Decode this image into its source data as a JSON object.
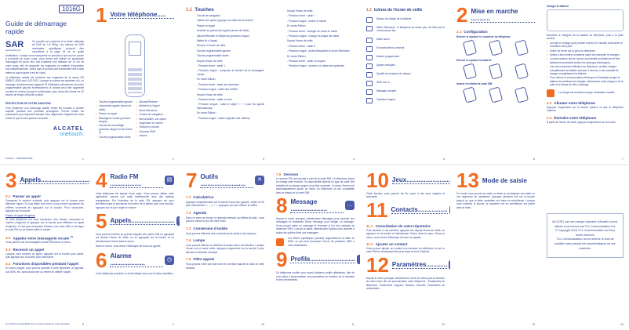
{
  "colors": {
    "accent": "#f26b21",
    "text": "#2b3f8f"
  },
  "cover": {
    "model": "1016G",
    "title": "Guide de démarrage rapide",
    "sar_logo": "SAR",
    "sar_url": "www.sar-tick.com",
    "sar_text": "Ce produit est conforme à la limite nationale de DAS de 1,6 W/kg. Les valeurs de DAS maximales spécifiques peuvent être consultées à la page 18 de ce guide d'utilisation. Lorsque vous transportez ce produit ou que vous le portez à proximité de votre corps, vous devez soit utiliser un accessoire homologué tel qu'un étui, soit maintenir une distance de 10 cm de votre corps, afin de respecter les exigences en matière d'exposition aux radiofréquences. Notez que ce produit peut transmettre des ondes même si aucun appel n'est en cours.",
    "norm_text": "Le téléphone mobile est conforme aux exigences de la norme EN 60950-1:2006 mod. A12:2011. Lorsque le volume est supérieur à 6, un message d'avertissement apparaît. Si l'utilisateur sélectionne la touche programmable gauche Avertissement, le volume peut être augmenté au-delà du niveau 6 jusqu'à confirmation, plus d'une fois toutes les 20 heures de temps d'écoute cumulé.",
    "hearing_title": "PROTECTION DE VOTRE AUDITION",
    "hearing_text": "Pour empêcher tout dommage auditif, évitez les écoutes à volume amplifié pendant des périodes prolongées. Prenez toutes les précautions qui s'imposent lorsque vous rapprochez l'appareil de votre oreille et que le haut-parleur est activé.",
    "brand": "ALCATEL",
    "brand2": "onetouch.",
    "footer": "Français - CJB1CE0ALABA",
    "page": "1"
  },
  "p2": {
    "num": "1",
    "title": "Votre téléphone.....",
    "left": [
      "Touche programmable gauche",
      "Journal des appels (écran de veille)",
      "Passer un appel",
      "Messagerie vocale (pression longue)",
      "Touche de verrouillage (pression longue sur la touche #)",
      "Touche programmable droite"
    ],
    "right": [
      "Allumer/Éteindre",
      "Mettre fin à l'appel",
      "Mode silencieux",
      "Touche de navigation :",
      "Menu/Valider une option",
      "Augmenter le volume",
      "Réduire le volume",
      "Nouveau SMS",
      "Alarme"
    ],
    "page": "2"
  },
  "p3": {
    "sec": "1.1",
    "title": "Touches",
    "items": [
      "Touche de navigation",
      "Valider une option (appuyer au milieu de la touche)",
      "Passer un appel",
      "Accéder au journal des appels (écran de veille)",
      "Allumer/éteindre le téléphone (pression longue)",
      "Mettre fin à l'appel",
      "Revenir à l'écran de veille",
      "Touche programmable gauche",
      "Touche programmable droite",
      "Depuis l'écran de veille",
      "- Pression brève : saisir 1",
      "- Pression longue : composer le numéro de la messagerie vocale",
      "En mode Édition :",
      "- Pression brève : saisir des symboles",
      "- Pression longue : saisir des chiffres",
      "Depuis l'écran de veille",
      "- Pression brève : saisir un zéro",
      "- Pression longue : saisir le signe « + » pour les appels internationaux",
      "En mode Édition :",
      "- Pression longue : saisir 0 (ajouter des chiffres)"
    ],
    "page": "3"
  },
  "p4": {
    "items": [
      "Depuis l'écran de veille",
      "- Pression brève : saisir *",
      "- Pression longue : activer le clavier",
      "En mode Édition :",
      "- Pression brève : changer de mode de saisie",
      "- Pression longue : changer la langue de saisie",
      "Depuis l'écran de veille",
      "- Pression brève : saisir #",
      "- Pression longue : activer/désactiver le mode Silencieux",
      "En mode Édition :",
      "- Pression brève : saisir un espace",
      "- Pression longue : accéder à la table des symboles"
    ],
    "page": "4"
  },
  "p5": {
    "sec": "1.2",
    "title": "Icônes de l'écran de veille",
    "icons": [
      "Niveau de charge de la batterie.",
      "Mode Silencieux : le téléphone ne sonne pas, ne vibre pas et n'émet aucun bip.",
      "Mode avion.",
      "Kit mains libres connecté.",
      "Alarme programmée.",
      "Appels manqués.",
      "Qualité de réception du réseau.",
      "SMS non lu.",
      "Message complet.",
      "Transfert d'appel."
    ],
    "page": "5"
  },
  "p6": {
    "num": "2",
    "title": "Mise en marche ...........",
    "sec": "2.1",
    "sec_title": "Configuration",
    "sub1": "Enlever et replacer le couvercle du téléphone",
    "sub2": "Enlever et replacer la batterie",
    "sub3": "Insérer et extraire la carte SIM",
    "page": "6"
  },
  "p7": {
    "sub": "Charger la batterie",
    "intro": "Branchez le chargeur de la batterie au téléphone, puis à la prise secteur.",
    "bullets": [
      "La mise en charge peut prendre environ 20 minutes à démarrer si la batterie est à plat.",
      "Évitez de forcer sur la prise du téléphone.",
      "Veillez à bien insérer la batterie avant de connecter le chargeur.",
      "La prise secteur doit se trouver à proximité du téléphone et être facilement accessible (évitez les rallonges électriques).",
      "Lors de la première utilisation du téléphone, veuillez charger complètement la batterie (environ 3 heures). Il est conseillé de charger complètement la batterie.",
      "Pour réduire la consommation électrique et d'énergie lorsque la batterie est entièrement chargée, débranchez votre chargeur de la prise et le temps de rétro-éclairage."
    ],
    "note": "La charge est terminée lorsque l'animation s'arrête.",
    "s22": "2.2",
    "s22_title": "Allumer votre téléphone",
    "s22_text": "Appuyez longuement sur la touche jusqu'à ce que le téléphone s'allume.",
    "s23": "2.3",
    "s23_title": "Éteindre votre téléphone",
    "s23_text": "À partir de l'écran de veille, appuyez longuement sur la touche.",
    "page": "7"
  },
  "p8": {
    "num": "3",
    "title": "Appels.............................",
    "s1": "3.1",
    "s1t": "Passer un appel",
    "s1p": "Composez le numéro souhaité, puis appuyez sur la touche pour effectuer l'appel. Si vous faites une erreur, vous pouvez supprimer les chiffres incorrects en appuyant sur la touche. Pour raccrocher, appuyez sur la touche.",
    "u": "Passer un appel d'urgence",
    "up": "Si votre téléphone est sous couverture d'un réseau, composez le numéro d'urgence et appuyez sur la touche pour effectuer un appel d'urgence. Il n'est pas nécessaire d'insérer une carte SIM, ni de taper le code PIN ou de déverrouiller le clavier.",
    "s2": "3.2",
    "s2t": "Appeler votre messagerie vocale",
    "sup": "(1)",
    "s2p": "Vous pouvez voir la messagerie vocale SIM dans ce menu.",
    "s3": "3.3",
    "s3t": "Recevoir un appel",
    "s3p": "Lorsque vous recevez un appel, appuyez sur la touche pour parler, puis appuyez sur la touche pour raccrocher.",
    "s4": "3.4",
    "s4t": "Fonctions disponibles pendant l'appel",
    "s4p": "En cours d'appel, vous pouvez accéder à votre répertoire, à l'agenda, aux SMS, etc. sans raccrocher ou mettre en attente l'appel.",
    "fn": "(1) Vérifiez la disponibilité de ce service auprès de votre opérateur.",
    "page": "8"
  },
  "p9": {
    "n4": "4",
    "t4": "Radio FM ..................",
    "p4": "Votre téléphone est équipé d'une radio. Vous pouvez utiliser cette application comme une radio traditionnelle avec des stations enregistrées. Sur l'interface de la radio FM, appuyez sur pour lire/interrompre le processus de lecture de la station que vous écoutez, appuyez sur et pour régler le volume.",
    "n5": "5",
    "t5": "Appels.........................",
    "p5": "Vous pouvez accéder au journal d'appels des cartes SIM en appuyant sur depuis l'écran de veille, ou en appuyant sur la touche et en sélectionnant l'icône dans le menu.",
    "p5b": "Dans ce menu, vous verrez l'historique de tous vos appels.",
    "n6": "6",
    "t6": "Alarme ....................",
    "p6": "Votre téléphone possède un réveil intégré avec une fonction répétition.",
    "page": "9"
  },
  "p10": {
    "num": "7",
    "title": "Outils ..........................",
    "secs": [
      {
        "n": "7.1",
        "t": "Calculatrice",
        "p": "Appuyez respectivement sur la touche haut, bas, gauche, droite et OK pour sélectionner +, -, ×, ÷, =. Appuyez sur pour effacer le chiffre."
      },
      {
        "n": "7.2",
        "t": "Agenda",
        "p": "Dans ce menu se trouve un agenda mensuel qui affiche la date ; vous pouvez choisir le jour de votre choix."
      },
      {
        "n": "7.3",
        "t": "Conversion d'unités",
        "p": "Vous pouvez effectuer des conversions de poids et de mesures."
      },
      {
        "n": "7.4",
        "t": "Lampe",
        "p": "Vous pouvez allumer ou éteindre la lampe selon vos besoins. Lorsque l'écran est en mode veille, appuyez longuement sur la touche 3 pour allumer ou éteindre la lampe."
      },
      {
        "n": "7.5",
        "t": "Filtre appels",
        "p": "Vous pouvez créer une liste noire et une liste blanche à l'aide de cette fonction."
      }
    ],
    "page": "10"
  },
  "p11": {
    "s6": "7.6",
    "s6t": "Services",
    "s6p": "Le service STK est la boîte à outil de la carte SIM. Ce téléphone prend en charge cette fonction. Sa disponibilité dépend du type de carte SIM installée et du réseau auquel vous êtes connecté. Le menu Service est automatiquement ajouté au menu du téléphone s'il est compatible avec le réseau et la carte SIM.",
    "n8": "8",
    "t8": "Message .....................",
    "p8": "Depuis le menu principal, sélectionnez Messages pour accéder aux messages et choisissez Écrire message pour rédiger un message. Vous pouvez saisir un message et l'envoyer à l'un des contacts du répertoire SMS. Lors de la saisie, sélectionnez Options pour accéder à toutes les options liées aux messages.",
    "note": "Les lettres spécifiques (accent) augmenteront la taille du SMS, ce qui peut provoquer l'envoi de plusieurs SMS à votre destinataire.",
    "n9": "9",
    "t9": "Profils..........................",
    "p9": "Ce téléphone mobile vous fournit plusieurs profils utilisateurs, afin de vous aider à personnaliser ces paramètres en fonction de la situation et des événements.",
    "page": "11"
  },
  "p12": {
    "n10": "10",
    "t10": "Jeux..........................",
    "p10": "Cette fonction vous permet de lire jouer à des jeux simples et amusants.",
    "n11": "11",
    "t11": "Contacts.................",
    "s1": "11.1",
    "s1t": "Consultation de votre répertoire",
    "s1p": "Pour accéder à vos contacts, appuyez sur depuis l'écran de veille, ou appuyez sur la touche et sélectionnez l'icône dans le menu. Dans ce menu, vous verrez l'historique de tous vos appels.",
    "s2": "11.2",
    "s2t": "Ajouter un contact",
    "s2p": "Vous pouvez ajouter un contact à la mémoire du téléphone ou sur la carte SIM en choisissant Nouveau dans le menu Options.",
    "n12": "12",
    "t12": "Paramètres............",
    "p12": "Depuis le menu principal, sélectionnez l'icône de menu puis la fonction de votre choix afin de personnaliser votre téléphone : Paramètres du téléphone, Paramètres d'appels, Réseau, Sécurité, Paramètres de restauration.",
    "page": "12"
  },
  "p13": {
    "num": "13",
    "title": "Mode de saisie",
    "p": "Ce mode vous permet de saisir un texte en choisissant une lettre ou une séquence de caractères. Appuyez plusieurs fois sur la touche jusqu'à ce que la lettre souhaitée soit mise en surbrillance. Lorsque vous relâchez la touche, la caractère mis en surbrillance est inséré dans le texte.",
    "page": "13"
  },
  "p14": {
    "lines": [
      "ALCATEL est une marque déposée d'Alcatel-Lucent, utilisée sous licence par TCL Communication Ltd.",
      "© Copyright 2015 TCL Communication Ltd Tous droits réservés",
      "TCL Communication Ltd se réserve le droit de modifier sans préavis les caractéristiques de ses matériels."
    ],
    "page": "14"
  }
}
